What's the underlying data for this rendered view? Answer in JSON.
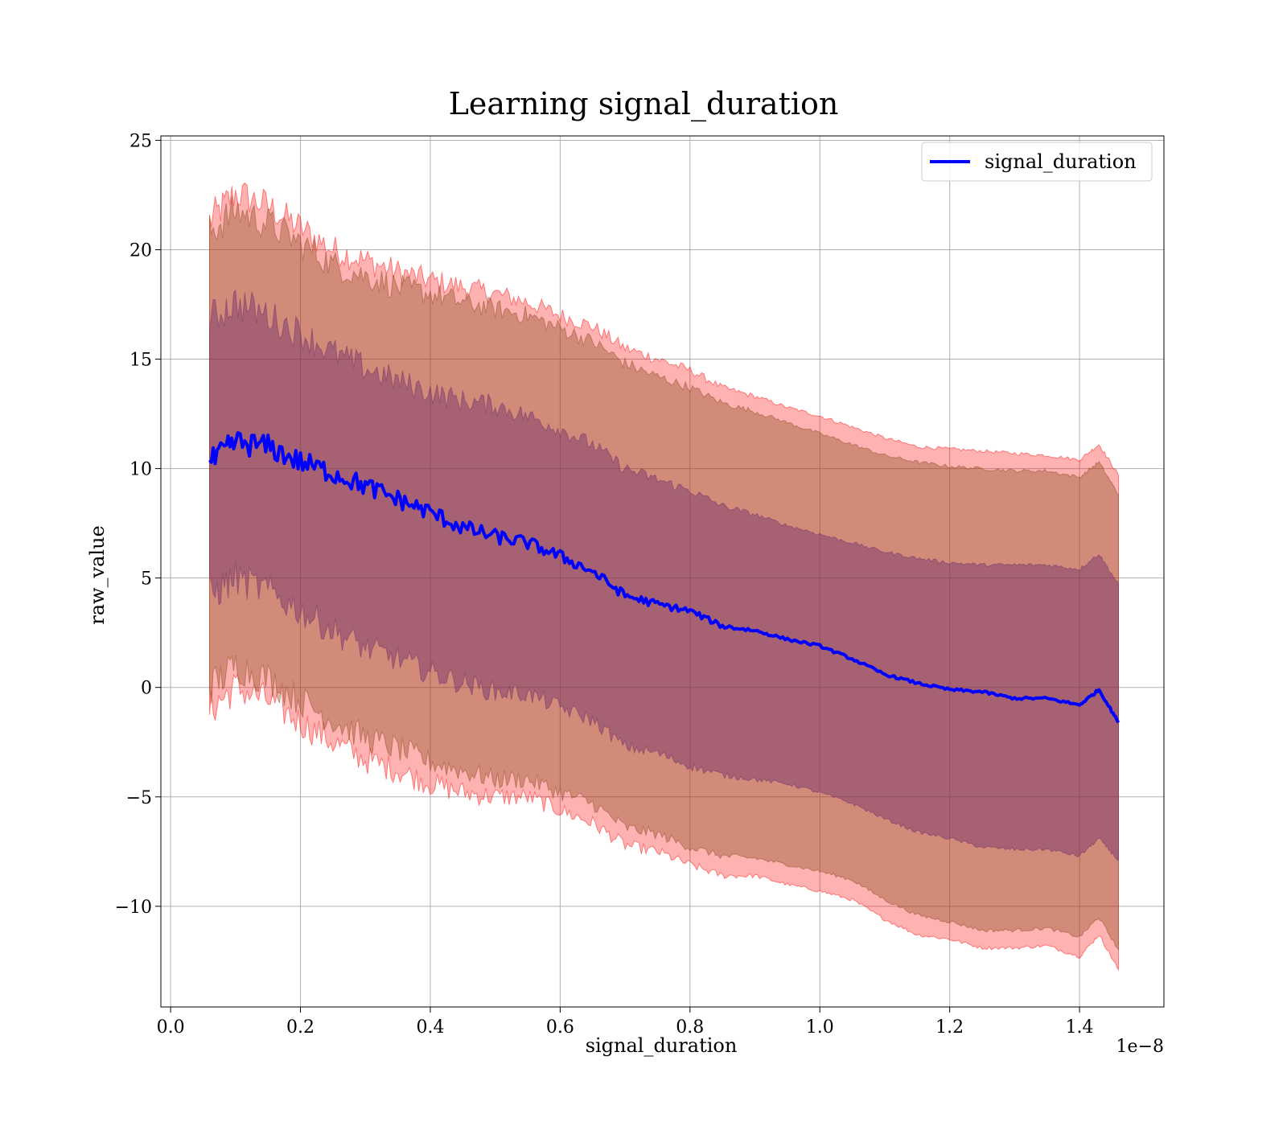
{
  "chart_data": {
    "type": "area",
    "title": "Learning signal_duration",
    "xlabel": "signal_duration",
    "ylabel": "raw_value",
    "x_offset_label": "1e−8",
    "xlim": [
      -0.015,
      1.53
    ],
    "ylim": [
      -14.6,
      25.2
    ],
    "x_ticks": [
      0.0,
      0.2,
      0.4,
      0.6,
      0.8,
      1.0,
      1.2,
      1.4
    ],
    "x_tick_labels": [
      "0.0",
      "0.2",
      "0.4",
      "0.6",
      "0.8",
      "1.0",
      "1.2",
      "1.4"
    ],
    "y_ticks": [
      -10,
      -5,
      0,
      5,
      10,
      15,
      20,
      25
    ],
    "y_tick_labels": [
      "−10",
      "−5",
      "0",
      "5",
      "10",
      "15",
      "20",
      "25"
    ],
    "grid": true,
    "legend": {
      "position": "top-right",
      "entries": [
        "signal_duration"
      ]
    },
    "colors": {
      "mean_line": "#0000ff",
      "band_outer": "#ff0000",
      "band_middle": "#8a4a1c",
      "band_inner": "#6a2a6a",
      "grid": "#b0b0b0"
    },
    "x": [
      0.06,
      0.1,
      0.15,
      0.2,
      0.25,
      0.3,
      0.35,
      0.4,
      0.45,
      0.5,
      0.55,
      0.6,
      0.65,
      0.7,
      0.75,
      0.8,
      0.85,
      0.9,
      0.95,
      1.0,
      1.05,
      1.1,
      1.15,
      1.2,
      1.25,
      1.3,
      1.35,
      1.4,
      1.43,
      1.46
    ],
    "series": [
      {
        "values": [
          10.2,
          11.2,
          11.0,
          10.3,
          9.8,
          9.2,
          8.6,
          8.0,
          7.3,
          6.9,
          6.6,
          6.0,
          5.3,
          4.2,
          3.8,
          3.5,
          2.8,
          2.6,
          2.2,
          1.9,
          1.3,
          0.6,
          0.2,
          -0.1,
          -0.2,
          -0.5,
          -0.5,
          -0.8,
          -0.1,
          -1.6
        ]
      }
    ],
    "bands": [
      {
        "upper": [
          21.3,
          22.6,
          22.0,
          21.0,
          20.0,
          19.5,
          19.0,
          18.6,
          18.3,
          18.0,
          17.6,
          17.0,
          16.5,
          15.5,
          15.0,
          14.5,
          13.7,
          13.3,
          12.8,
          12.4,
          11.9,
          11.4,
          11.0,
          10.9,
          10.8,
          10.7,
          10.6,
          10.4,
          11.1,
          9.7
        ],
        "lower": [
          -1.0,
          0.0,
          -0.6,
          -1.6,
          -2.5,
          -3.3,
          -3.8,
          -4.4,
          -4.8,
          -5.0,
          -5.0,
          -5.6,
          -6.2,
          -7.2,
          -7.5,
          -8.1,
          -8.6,
          -8.6,
          -9.0,
          -9.3,
          -9.7,
          -10.6,
          -11.3,
          -11.5,
          -11.9,
          -11.9,
          -11.8,
          -12.3,
          -11.3,
          -12.9
        ]
      },
      {
        "upper": [
          20.8,
          21.8,
          21.2,
          20.3,
          19.3,
          18.8,
          18.3,
          18.0,
          17.6,
          17.3,
          17.0,
          16.4,
          15.8,
          14.8,
          14.2,
          13.7,
          13.0,
          12.6,
          12.1,
          11.6,
          11.1,
          10.6,
          10.3,
          10.1,
          10.0,
          9.9,
          9.9,
          9.6,
          10.3,
          8.8
        ],
        "lower": [
          0.0,
          1.0,
          0.4,
          -0.6,
          -1.5,
          -2.3,
          -2.8,
          -3.4,
          -3.8,
          -4.2,
          -4.2,
          -4.8,
          -5.3,
          -6.4,
          -6.7,
          -7.3,
          -7.7,
          -7.8,
          -8.1,
          -8.4,
          -8.8,
          -9.7,
          -10.4,
          -10.7,
          -11.1,
          -11.1,
          -11.0,
          -11.4,
          -10.5,
          -12.0
        ]
      },
      {
        "upper": [
          16.8,
          17.6,
          17.0,
          16.2,
          15.3,
          14.6,
          14.0,
          13.5,
          13.1,
          12.9,
          12.4,
          11.8,
          11.1,
          10.0,
          9.5,
          9.0,
          8.3,
          7.9,
          7.4,
          7.0,
          6.6,
          6.2,
          5.9,
          5.7,
          5.6,
          5.6,
          5.6,
          5.4,
          6.1,
          4.7
        ],
        "lower": [
          4.2,
          5.0,
          4.4,
          3.5,
          2.6,
          1.8,
          1.3,
          0.7,
          0.2,
          -0.2,
          -0.3,
          -0.9,
          -1.5,
          -2.7,
          -3.0,
          -3.6,
          -4.0,
          -4.2,
          -4.4,
          -4.8,
          -5.3,
          -6.0,
          -6.6,
          -6.9,
          -7.3,
          -7.4,
          -7.4,
          -7.7,
          -6.9,
          -7.9
        ]
      }
    ]
  }
}
